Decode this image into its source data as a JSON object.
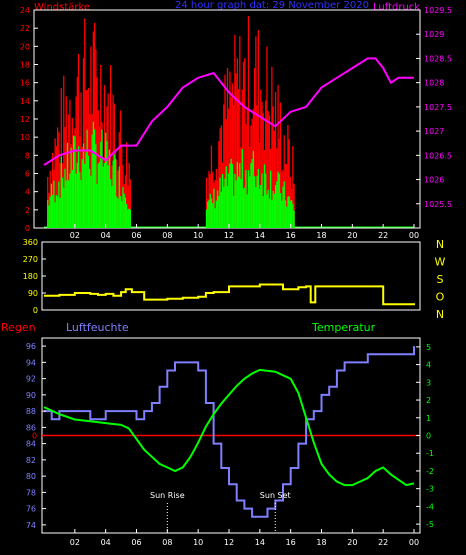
{
  "header": {
    "title_left": "Windstärke",
    "title_center": "24 hour graph dat: 29 November 2020",
    "title_right": "Luftdruck"
  },
  "colors": {
    "wind_avg": "#00ff00",
    "wind_gust": "#ff0000",
    "pressure": "#ff00ff",
    "direction": "#ffff00",
    "humidity": "#8080ff",
    "temperature": "#00ff00",
    "rain": "#ff0000",
    "frame": "#ffffff",
    "background": "#000000"
  },
  "chart_data": [
    {
      "type": "bar",
      "title": "24 hour graph dat: 29 November 2020",
      "ylabel": "Windstärke",
      "y2label": "Luftdruck",
      "ylim": [
        0,
        24
      ],
      "y2lim": [
        1025,
        1029.5
      ],
      "yticks": [
        0,
        2,
        4,
        6,
        8,
        10,
        12,
        14,
        16,
        18,
        20,
        22,
        24
      ],
      "y2ticks": [
        "1025.5",
        "1026",
        "1026.5",
        "1027",
        "1027.5",
        "1028",
        "1028.5",
        "1029",
        "1029.5"
      ],
      "xticks": [
        "02",
        "04",
        "06",
        "08",
        "10",
        "12",
        "14",
        "16",
        "18",
        "20",
        "22",
        "00"
      ],
      "wind_periods": [
        {
          "start": 0.2,
          "end": 5.6,
          "gust_peak": 24,
          "avg_peak": 12
        },
        {
          "start": 10.5,
          "end": 16.2,
          "gust_peak": 24,
          "avg_peak": 9
        }
      ],
      "pressure_series": {
        "name": "Luftdruck",
        "x": [
          0,
          1,
          2,
          3,
          4,
          5,
          6,
          7,
          8,
          9,
          10,
          11,
          12,
          13,
          14,
          15,
          16,
          17,
          18,
          19,
          20,
          21,
          21.5,
          22,
          22.5,
          23,
          24
        ],
        "y": [
          1026.3,
          1026.5,
          1026.6,
          1026.6,
          1026.4,
          1026.7,
          1026.7,
          1027.2,
          1027.5,
          1027.9,
          1028.1,
          1028.2,
          1027.8,
          1027.5,
          1027.3,
          1027.1,
          1027.4,
          1027.5,
          1027.9,
          1028.1,
          1028.3,
          1028.5,
          1028.5,
          1028.3,
          1028.0,
          1028.1,
          1028.1
        ]
      }
    },
    {
      "type": "line",
      "yticks": [
        0,
        90,
        180,
        270,
        360
      ],
      "ylim": [
        0,
        360
      ],
      "compass": [
        "N",
        "W",
        "S",
        "O",
        "N"
      ],
      "xticks": [
        "02",
        "04",
        "06",
        "08",
        "10",
        "12",
        "14",
        "16",
        "18",
        "20",
        "22",
        "00"
      ],
      "series": [
        {
          "x": [
            0,
            1,
            2,
            3,
            3.5,
            4,
            4.5,
            5,
            5.3,
            5.7,
            6.5,
            8,
            9,
            10,
            10.5,
            11,
            12,
            13,
            14,
            15,
            15.5,
            16,
            16.5,
            17,
            17.3,
            17.6,
            18,
            20,
            21,
            22,
            23,
            24
          ],
          "y": [
            75,
            80,
            90,
            85,
            80,
            85,
            75,
            95,
            110,
            95,
            55,
            60,
            65,
            70,
            90,
            95,
            125,
            125,
            135,
            135,
            110,
            110,
            120,
            125,
            40,
            125,
            125,
            125,
            125,
            30,
            30,
            25
          ]
        }
      ]
    },
    {
      "type": "line",
      "labels": {
        "rain": "Regen",
        "humidity": "Luftfeuchte",
        "temperature": "Temperatur"
      },
      "ylim": [
        73,
        97
      ],
      "yticks": [
        74,
        76,
        78,
        80,
        82,
        84,
        86,
        88,
        90,
        92,
        94,
        96
      ],
      "y2lim": [
        -5.5,
        5.5
      ],
      "y2ticks": [
        -5,
        -4,
        -3,
        -2,
        -1,
        0,
        1,
        2,
        3,
        4,
        5
      ],
      "rain_marker": "0",
      "annotations": [
        "Sun Rise",
        "Sun Set"
      ],
      "annotation_x": [
        8,
        15
      ],
      "xticks": [
        "02",
        "04",
        "06",
        "08",
        "10",
        "12",
        "14",
        "16",
        "18",
        "20",
        "22",
        "00"
      ],
      "series": [
        {
          "name": "Luftfeuchte",
          "x": [
            0,
            0.5,
            1,
            2,
            3,
            4,
            5,
            5.5,
            6,
            6.5,
            7,
            7.5,
            8,
            8.5,
            9,
            9.5,
            10,
            10.5,
            11,
            11.5,
            12,
            12.5,
            13,
            13.5,
            14,
            14.5,
            15,
            15.5,
            16,
            16.5,
            17,
            17.5,
            18,
            18.5,
            19,
            19.5,
            20,
            21,
            22,
            23,
            23.5,
            24
          ],
          "y": [
            88,
            87,
            88,
            88,
            87,
            88,
            88,
            88,
            87,
            88,
            89,
            91,
            93,
            94,
            94,
            94,
            93,
            89,
            84,
            81,
            79,
            77,
            76,
            75,
            75,
            76,
            77,
            79,
            81,
            84,
            87,
            88,
            90,
            91,
            93,
            94,
            94,
            95,
            95,
            95,
            95,
            96
          ]
        },
        {
          "name": "Temperatur",
          "x": [
            0,
            1,
            2,
            3,
            4,
            5,
            5.5,
            6,
            6.5,
            7,
            7.5,
            8,
            8.5,
            9,
            9.5,
            10,
            10.5,
            11,
            11.5,
            12,
            12.5,
            13,
            13.5,
            14,
            15,
            16,
            16.5,
            17,
            17.5,
            18,
            18.5,
            19,
            19.5,
            20,
            20.5,
            21,
            21.5,
            22,
            22.5,
            23,
            23.5,
            24
          ],
          "y": [
            1.6,
            1.2,
            0.9,
            0.8,
            0.7,
            0.6,
            0.4,
            -0.2,
            -0.8,
            -1.2,
            -1.6,
            -1.8,
            -2.0,
            -1.8,
            -1.2,
            -0.4,
            0.5,
            1.2,
            1.8,
            2.3,
            2.8,
            3.2,
            3.5,
            3.7,
            3.6,
            3.2,
            2.4,
            1.0,
            -0.4,
            -1.6,
            -2.2,
            -2.6,
            -2.8,
            -2.8,
            -2.6,
            -2.4,
            -2.0,
            -1.8,
            -2.2,
            -2.5,
            -2.8,
            -2.7
          ]
        }
      ]
    }
  ]
}
